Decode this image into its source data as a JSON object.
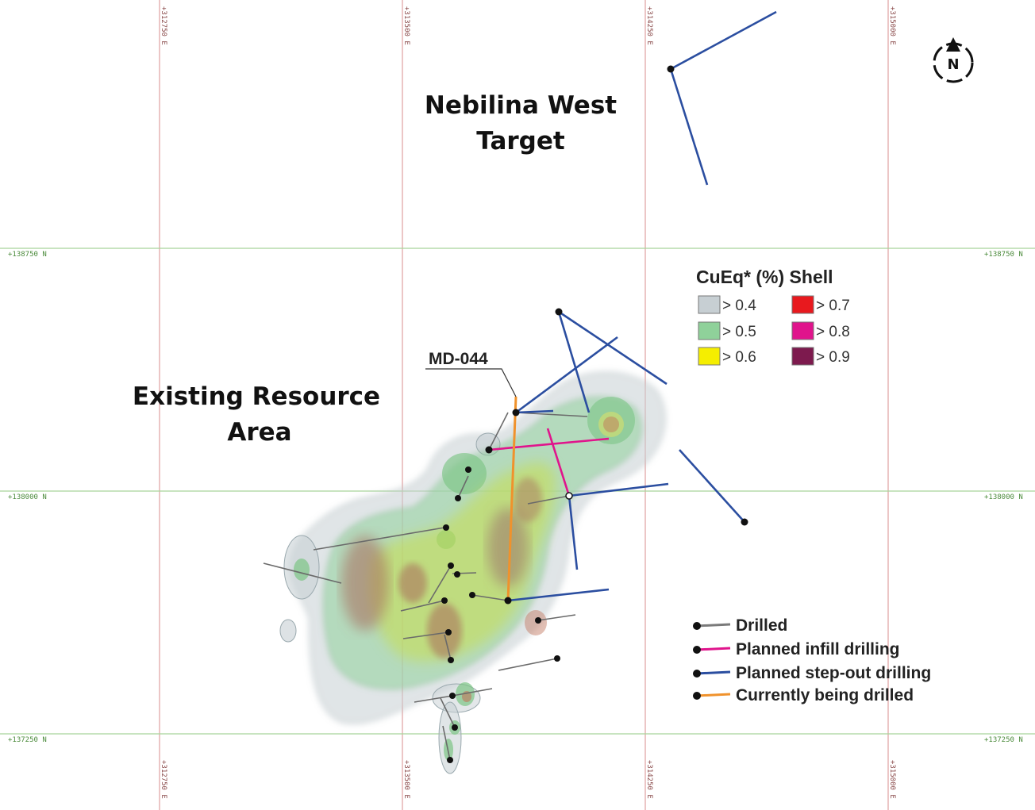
{
  "grid": {
    "eastings": [
      "+312750 E",
      "+313500 E",
      "+314250 E",
      "+315000 E"
    ],
    "northings": [
      "+138750 N",
      "+138000 N",
      "+137250 N"
    ]
  },
  "labels": {
    "nebilina_line1": "Nebilina West",
    "nebilina_line2": "Target",
    "existing_line1": "Existing Resource",
    "existing_line2": "Area",
    "hole_id": "MD-044"
  },
  "north_arrow": {
    "letter": "N",
    "icon": "north-arrow-icon"
  },
  "shell_legend": {
    "title": "CuEq* (%) Shell",
    "items": [
      {
        "label": "> 0.4",
        "color": "#c7cfd3"
      },
      {
        "label": "> 0.5",
        "color": "#8fd19a"
      },
      {
        "label": "> 0.6",
        "color": "#f5ee00"
      },
      {
        "label": "> 0.7",
        "color": "#e8191e"
      },
      {
        "label": "> 0.8",
        "color": "#e0148c"
      },
      {
        "label": "> 0.9",
        "color": "#7d1a4e"
      }
    ]
  },
  "drill_legend": {
    "items": [
      {
        "label": "Drilled",
        "color": "#7a7a7a"
      },
      {
        "label": "Planned infill drilling",
        "color": "#e0148c"
      },
      {
        "label": "Planned step-out drilling",
        "color": "#2b4ea0"
      },
      {
        "label": "Currently being drilled",
        "color": "#f0922c"
      }
    ]
  }
}
